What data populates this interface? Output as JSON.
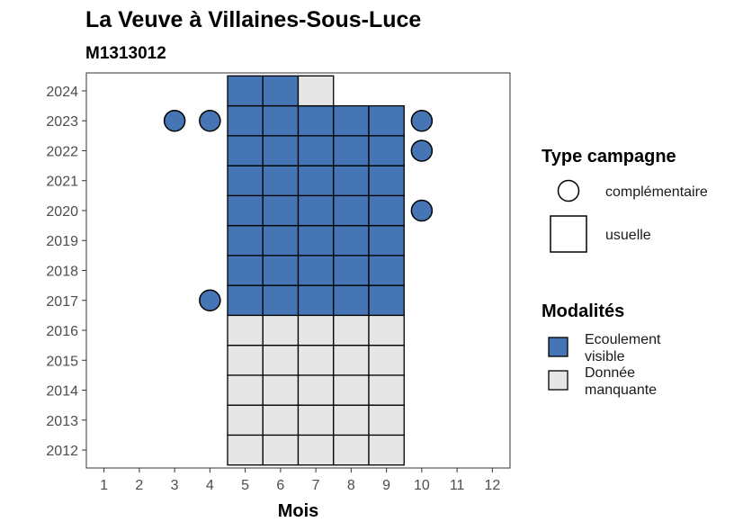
{
  "chart_data": {
    "type": "heatmap",
    "title": "La Veuve à Villaines-Sous-Luce",
    "subtitle": "M1313012",
    "xlabel": "Mois",
    "ylabel": "",
    "x_ticks": [
      "1",
      "2",
      "3",
      "4",
      "5",
      "6",
      "7",
      "8",
      "9",
      "10",
      "11",
      "12"
    ],
    "y_ticks": [
      "2012",
      "2013",
      "2014",
      "2015",
      "2016",
      "2017",
      "2018",
      "2019",
      "2020",
      "2021",
      "2022",
      "2023",
      "2024"
    ],
    "xlim": [
      0.5,
      12.5
    ],
    "ylim": [
      2011.4,
      2024.6
    ],
    "grid": false,
    "colors": {
      "Ecoulement visible": "#4575b4",
      "Donnée manquante": "#e6e6e6"
    },
    "tiles": [
      {
        "year": 2012,
        "months": [
          5,
          6,
          7,
          8,
          9
        ],
        "modalite": "Donnée manquante"
      },
      {
        "year": 2013,
        "months": [
          5,
          6,
          7,
          8,
          9
        ],
        "modalite": "Donnée manquante"
      },
      {
        "year": 2014,
        "months": [
          5,
          6,
          7,
          8,
          9
        ],
        "modalite": "Donnée manquante"
      },
      {
        "year": 2015,
        "months": [
          5,
          6,
          7,
          8,
          9
        ],
        "modalite": "Donnée manquante"
      },
      {
        "year": 2016,
        "months": [
          5,
          6,
          7,
          8,
          9
        ],
        "modalite": "Donnée manquante"
      },
      {
        "year": 2017,
        "months": [
          5,
          6,
          7,
          8,
          9
        ],
        "modalite": "Ecoulement visible"
      },
      {
        "year": 2018,
        "months": [
          5,
          6,
          7,
          8,
          9
        ],
        "modalite": "Ecoulement visible"
      },
      {
        "year": 2019,
        "months": [
          5,
          6,
          7,
          8,
          9
        ],
        "modalite": "Ecoulement visible"
      },
      {
        "year": 2020,
        "months": [
          5,
          6,
          7,
          8,
          9
        ],
        "modalite": "Ecoulement visible"
      },
      {
        "year": 2021,
        "months": [
          5,
          6,
          7,
          8,
          9
        ],
        "modalite": "Ecoulement visible"
      },
      {
        "year": 2022,
        "months": [
          5,
          6,
          7,
          8,
          9
        ],
        "modalite": "Ecoulement visible"
      },
      {
        "year": 2023,
        "months": [
          5,
          6,
          7,
          8,
          9
        ],
        "modalite": "Ecoulement visible"
      },
      {
        "year": 2024,
        "months": [
          5,
          6
        ],
        "modalite": "Ecoulement visible"
      },
      {
        "year": 2024,
        "months": [
          7
        ],
        "modalite": "Donnée manquante"
      }
    ],
    "points": [
      {
        "year": 2023,
        "month": 3,
        "modalite": "Ecoulement visible"
      },
      {
        "year": 2023,
        "month": 4,
        "modalite": "Ecoulement visible"
      },
      {
        "year": 2023,
        "month": 10,
        "modalite": "Ecoulement visible"
      },
      {
        "year": 2022,
        "month": 10,
        "modalite": "Ecoulement visible"
      },
      {
        "year": 2020,
        "month": 10,
        "modalite": "Ecoulement visible"
      },
      {
        "year": 2017,
        "month": 4,
        "modalite": "Ecoulement visible"
      }
    ],
    "legend_type": {
      "title": "Type campagne",
      "items": [
        {
          "label": "complémentaire",
          "shape": "circle"
        },
        {
          "label": "usuelle",
          "shape": "square"
        }
      ]
    },
    "legend_modalites": {
      "title": "Modalités",
      "items": [
        {
          "label_lines": [
            "Ecoulement",
            "visible"
          ],
          "color": "#4575b4"
        },
        {
          "label_lines": [
            "Donnée",
            "manquante"
          ],
          "color": "#e6e6e6"
        }
      ]
    },
    "legend_placement": "right"
  }
}
